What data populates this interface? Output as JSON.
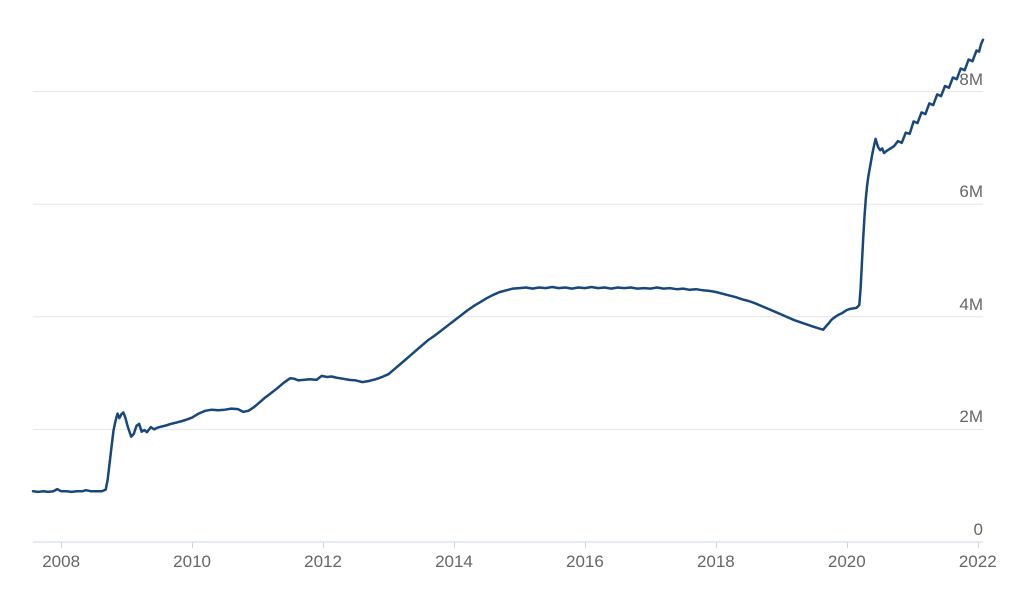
{
  "chart": {
    "background_color": "#ffffff",
    "line_color": "#17477b",
    "grid_color": "#e6e6e6",
    "axis_color": "#ccd6eb",
    "label_color": "#666666"
  },
  "chart_data": {
    "type": "line",
    "title": "",
    "xlabel": "",
    "ylabel": "",
    "legend": "none",
    "grid": "horizontal-only",
    "xlim": [
      2007.57,
      2022.08
    ],
    "ylim": [
      0,
      9
    ],
    "y_unit": "M",
    "x_ticks": [
      {
        "value": 2008,
        "label": "2008"
      },
      {
        "value": 2010,
        "label": "2010"
      },
      {
        "value": 2012,
        "label": "2012"
      },
      {
        "value": 2014,
        "label": "2014"
      },
      {
        "value": 2016,
        "label": "2016"
      },
      {
        "value": 2018,
        "label": "2018"
      },
      {
        "value": 2020,
        "label": "2020"
      },
      {
        "value": 2022,
        "label": "2022"
      }
    ],
    "y_ticks": [
      {
        "value": 0,
        "label": "0"
      },
      {
        "value": 2,
        "label": "2M"
      },
      {
        "value": 4,
        "label": "4M"
      },
      {
        "value": 6,
        "label": "6M"
      },
      {
        "value": 8,
        "label": "8M"
      }
    ],
    "series": [
      {
        "name": "value",
        "points": [
          [
            2007.57,
            0.9
          ],
          [
            2007.65,
            0.89
          ],
          [
            2007.73,
            0.9
          ],
          [
            2007.8,
            0.89
          ],
          [
            2007.88,
            0.9
          ],
          [
            2007.94,
            0.94
          ],
          [
            2008.0,
            0.9
          ],
          [
            2008.08,
            0.9
          ],
          [
            2008.16,
            0.89
          ],
          [
            2008.24,
            0.9
          ],
          [
            2008.32,
            0.9
          ],
          [
            2008.38,
            0.92
          ],
          [
            2008.46,
            0.9
          ],
          [
            2008.54,
            0.9
          ],
          [
            2008.62,
            0.9
          ],
          [
            2008.68,
            0.93
          ],
          [
            2008.71,
            1.1
          ],
          [
            2008.74,
            1.4
          ],
          [
            2008.77,
            1.7
          ],
          [
            2008.8,
            1.98
          ],
          [
            2008.83,
            2.15
          ],
          [
            2008.86,
            2.28
          ],
          [
            2008.89,
            2.2
          ],
          [
            2008.92,
            2.27
          ],
          [
            2008.95,
            2.3
          ],
          [
            2008.98,
            2.21
          ],
          [
            2009.02,
            2.04
          ],
          [
            2009.07,
            1.87
          ],
          [
            2009.11,
            1.92
          ],
          [
            2009.15,
            2.06
          ],
          [
            2009.19,
            2.1
          ],
          [
            2009.23,
            1.96
          ],
          [
            2009.27,
            1.99
          ],
          [
            2009.31,
            1.95
          ],
          [
            2009.37,
            2.04
          ],
          [
            2009.42,
            2.0
          ],
          [
            2009.47,
            2.03
          ],
          [
            2009.53,
            2.05
          ],
          [
            2009.6,
            2.07
          ],
          [
            2009.68,
            2.1
          ],
          [
            2009.76,
            2.12
          ],
          [
            2009.85,
            2.15
          ],
          [
            2009.93,
            2.18
          ],
          [
            2010.0,
            2.21
          ],
          [
            2010.1,
            2.28
          ],
          [
            2010.2,
            2.33
          ],
          [
            2010.3,
            2.35
          ],
          [
            2010.4,
            2.34
          ],
          [
            2010.5,
            2.35
          ],
          [
            2010.6,
            2.37
          ],
          [
            2010.7,
            2.36
          ],
          [
            2010.78,
            2.31
          ],
          [
            2010.86,
            2.33
          ],
          [
            2010.94,
            2.39
          ],
          [
            2011.0,
            2.45
          ],
          [
            2011.1,
            2.55
          ],
          [
            2011.2,
            2.64
          ],
          [
            2011.3,
            2.73
          ],
          [
            2011.4,
            2.83
          ],
          [
            2011.5,
            2.91
          ],
          [
            2011.56,
            2.9
          ],
          [
            2011.62,
            2.87
          ],
          [
            2011.7,
            2.88
          ],
          [
            2011.8,
            2.89
          ],
          [
            2011.9,
            2.88
          ],
          [
            2011.98,
            2.95
          ],
          [
            2012.06,
            2.93
          ],
          [
            2012.13,
            2.94
          ],
          [
            2012.2,
            2.92
          ],
          [
            2012.3,
            2.9
          ],
          [
            2012.4,
            2.88
          ],
          [
            2012.5,
            2.87
          ],
          [
            2012.6,
            2.84
          ],
          [
            2012.7,
            2.86
          ],
          [
            2012.8,
            2.89
          ],
          [
            2012.9,
            2.93
          ],
          [
            2013.0,
            2.98
          ],
          [
            2013.1,
            3.08
          ],
          [
            2013.2,
            3.18
          ],
          [
            2013.3,
            3.28
          ],
          [
            2013.4,
            3.38
          ],
          [
            2013.5,
            3.48
          ],
          [
            2013.6,
            3.58
          ],
          [
            2013.7,
            3.66
          ],
          [
            2013.8,
            3.75
          ],
          [
            2013.9,
            3.84
          ],
          [
            2014.0,
            3.93
          ],
          [
            2014.1,
            4.02
          ],
          [
            2014.2,
            4.11
          ],
          [
            2014.3,
            4.19
          ],
          [
            2014.4,
            4.26
          ],
          [
            2014.5,
            4.33
          ],
          [
            2014.6,
            4.39
          ],
          [
            2014.7,
            4.44
          ],
          [
            2014.8,
            4.47
          ],
          [
            2014.9,
            4.5
          ],
          [
            2015.0,
            4.51
          ],
          [
            2015.1,
            4.52
          ],
          [
            2015.2,
            4.5
          ],
          [
            2015.3,
            4.52
          ],
          [
            2015.4,
            4.51
          ],
          [
            2015.5,
            4.53
          ],
          [
            2015.6,
            4.51
          ],
          [
            2015.7,
            4.52
          ],
          [
            2015.8,
            4.5
          ],
          [
            2015.9,
            4.52
          ],
          [
            2016.0,
            4.51
          ],
          [
            2016.1,
            4.53
          ],
          [
            2016.2,
            4.51
          ],
          [
            2016.3,
            4.52
          ],
          [
            2016.4,
            4.5
          ],
          [
            2016.5,
            4.52
          ],
          [
            2016.6,
            4.51
          ],
          [
            2016.7,
            4.52
          ],
          [
            2016.8,
            4.5
          ],
          [
            2016.9,
            4.51
          ],
          [
            2017.0,
            4.5
          ],
          [
            2017.1,
            4.52
          ],
          [
            2017.2,
            4.5
          ],
          [
            2017.3,
            4.51
          ],
          [
            2017.4,
            4.49
          ],
          [
            2017.5,
            4.5
          ],
          [
            2017.6,
            4.48
          ],
          [
            2017.7,
            4.49
          ],
          [
            2017.8,
            4.47
          ],
          [
            2017.9,
            4.46
          ],
          [
            2018.0,
            4.44
          ],
          [
            2018.1,
            4.41
          ],
          [
            2018.2,
            4.38
          ],
          [
            2018.3,
            4.35
          ],
          [
            2018.4,
            4.31
          ],
          [
            2018.5,
            4.28
          ],
          [
            2018.6,
            4.24
          ],
          [
            2018.7,
            4.19
          ],
          [
            2018.8,
            4.14
          ],
          [
            2018.9,
            4.09
          ],
          [
            2019.0,
            4.04
          ],
          [
            2019.1,
            3.99
          ],
          [
            2019.2,
            3.94
          ],
          [
            2019.3,
            3.9
          ],
          [
            2019.4,
            3.86
          ],
          [
            2019.5,
            3.82
          ],
          [
            2019.58,
            3.79
          ],
          [
            2019.64,
            3.77
          ],
          [
            2019.68,
            3.83
          ],
          [
            2019.72,
            3.88
          ],
          [
            2019.76,
            3.94
          ],
          [
            2019.8,
            3.98
          ],
          [
            2019.84,
            4.01
          ],
          [
            2019.88,
            4.04
          ],
          [
            2019.92,
            4.06
          ],
          [
            2019.96,
            4.09
          ],
          [
            2020.0,
            4.12
          ],
          [
            2020.05,
            4.14
          ],
          [
            2020.1,
            4.15
          ],
          [
            2020.15,
            4.16
          ],
          [
            2020.19,
            4.21
          ],
          [
            2020.21,
            4.5
          ],
          [
            2020.23,
            4.95
          ],
          [
            2020.25,
            5.4
          ],
          [
            2020.27,
            5.78
          ],
          [
            2020.29,
            6.1
          ],
          [
            2020.31,
            6.33
          ],
          [
            2020.33,
            6.5
          ],
          [
            2020.36,
            6.7
          ],
          [
            2020.39,
            6.9
          ],
          [
            2020.42,
            7.06
          ],
          [
            2020.44,
            7.16
          ],
          [
            2020.46,
            7.08
          ],
          [
            2020.48,
            7.01
          ],
          [
            2020.51,
            6.96
          ],
          [
            2020.54,
            6.99
          ],
          [
            2020.57,
            6.91
          ],
          [
            2020.6,
            6.94
          ],
          [
            2020.64,
            6.97
          ],
          [
            2020.68,
            7.0
          ],
          [
            2020.72,
            7.03
          ],
          [
            2020.78,
            7.12
          ],
          [
            2020.84,
            7.09
          ],
          [
            2020.9,
            7.27
          ],
          [
            2020.96,
            7.25
          ],
          [
            2021.02,
            7.47
          ],
          [
            2021.08,
            7.44
          ],
          [
            2021.14,
            7.63
          ],
          [
            2021.2,
            7.6
          ],
          [
            2021.26,
            7.79
          ],
          [
            2021.32,
            7.76
          ],
          [
            2021.38,
            7.95
          ],
          [
            2021.44,
            7.92
          ],
          [
            2021.5,
            8.1
          ],
          [
            2021.56,
            8.07
          ],
          [
            2021.62,
            8.25
          ],
          [
            2021.68,
            8.22
          ],
          [
            2021.74,
            8.41
          ],
          [
            2021.8,
            8.38
          ],
          [
            2021.86,
            8.57
          ],
          [
            2021.92,
            8.54
          ],
          [
            2021.98,
            8.73
          ],
          [
            2022.02,
            8.71
          ],
          [
            2022.05,
            8.84
          ],
          [
            2022.08,
            8.92
          ]
        ]
      }
    ]
  }
}
